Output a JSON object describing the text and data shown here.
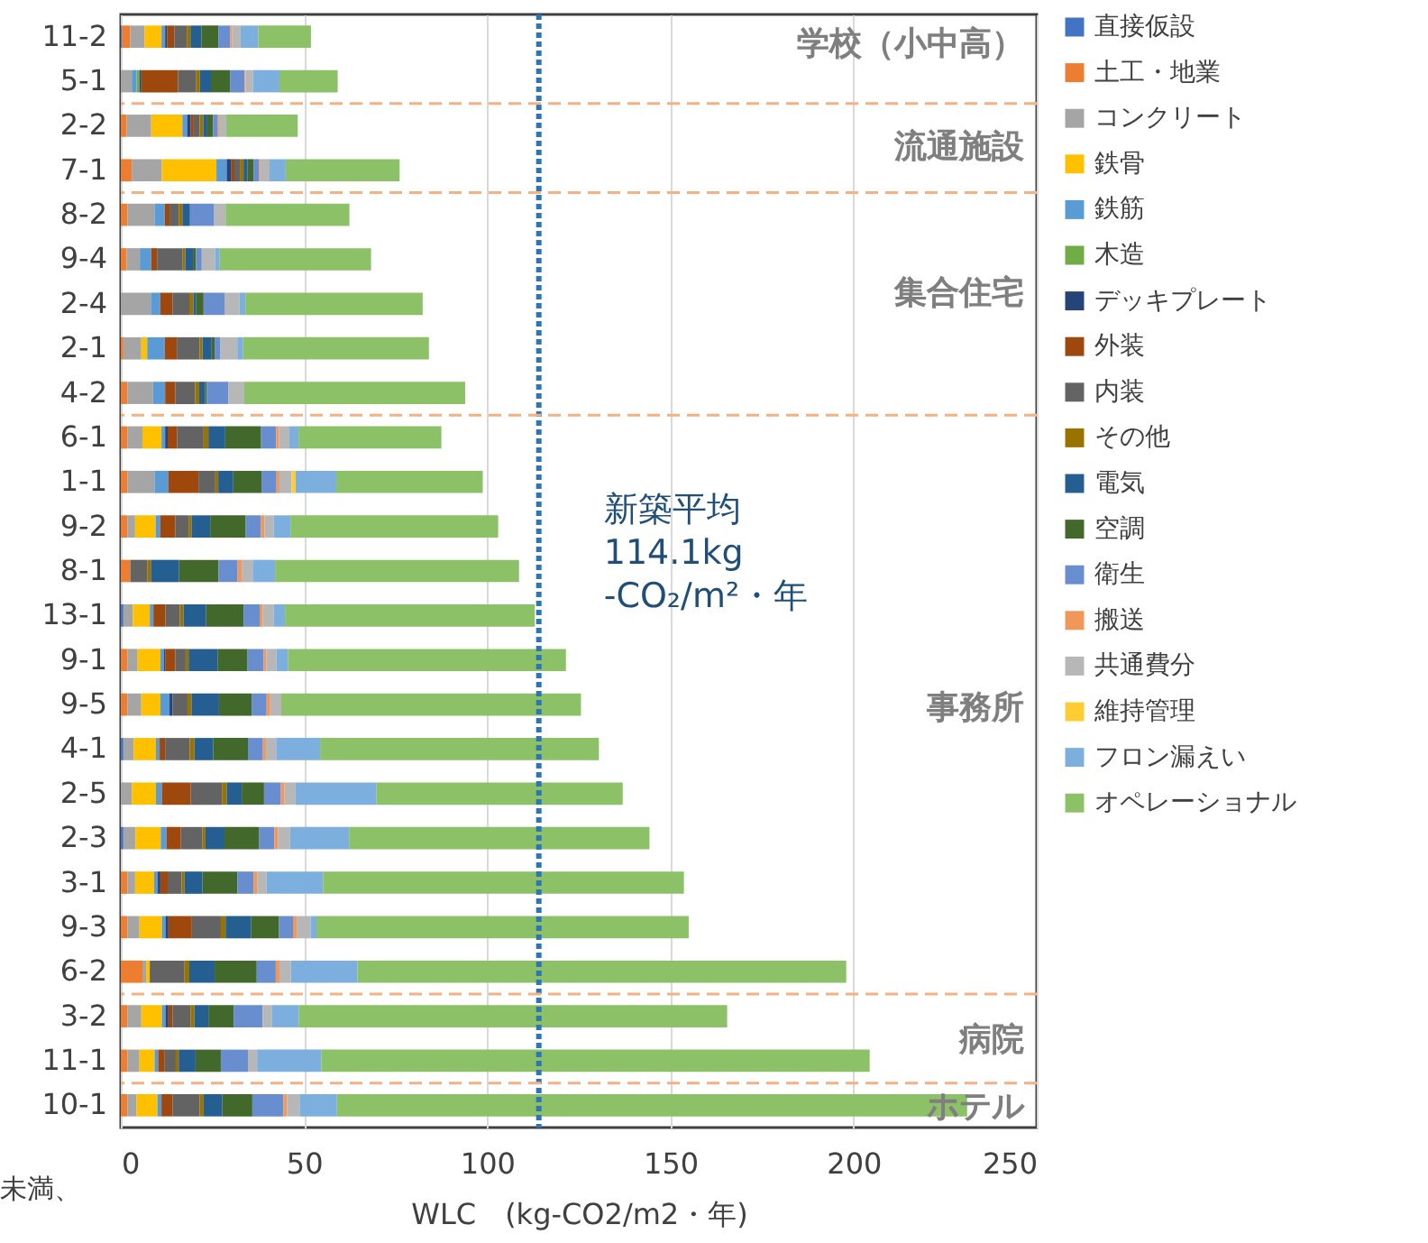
{
  "chart_data": {
    "type": "bar",
    "orientation": "horizontal",
    "stacked": true,
    "xlabel": "WLC　(kg-CO2/m2・年)",
    "categories": [
      "11-2",
      "5-1",
      "2-2",
      "7-1",
      "8-2",
      "9-4",
      "2-4",
      "2-1",
      "4-2",
      "6-1",
      "1-1",
      "9-2",
      "8-1",
      "13-1",
      "9-1",
      "9-5",
      "4-1",
      "2-5",
      "2-3",
      "3-1",
      "9-3",
      "6-2",
      "3-2",
      "11-1",
      "10-1"
    ],
    "xlim": [
      0,
      250
    ],
    "xticks": [
      0,
      50,
      100,
      150,
      200,
      250
    ],
    "grid": "x",
    "legend": "right",
    "series": [
      {
        "name": "直接仮設",
        "color": "#4472c4",
        "values": [
          0.3,
          0,
          0,
          0,
          0,
          0,
          0,
          0,
          0,
          0,
          0,
          0,
          0,
          0.7,
          0,
          0,
          0.7,
          0,
          0.7,
          0,
          0,
          0,
          0,
          0,
          0
        ]
      },
      {
        "name": "土工・地業",
        "color": "#ed7d31",
        "values": [
          2.3,
          0,
          1.6,
          3,
          1.8,
          1.6,
          0,
          0.7,
          1.8,
          1.8,
          1.8,
          1.8,
          2.6,
          0,
          1.8,
          1.8,
          0,
          0,
          0,
          1.8,
          1.8,
          5.9,
          1.8,
          1.8,
          1.8
        ]
      },
      {
        "name": "コンクリート",
        "color": "#a5a5a5",
        "values": [
          3.9,
          3,
          6.7,
          8.2,
          7.4,
          3.6,
          8.2,
          4.9,
          7,
          4.1,
          7.4,
          2.1,
          0,
          2.6,
          2.8,
          3.8,
          2.8,
          3,
          3.3,
          2.1,
          3.3,
          1,
          3.8,
          3.3,
          2.5
        ]
      },
      {
        "name": "鉄骨",
        "color": "#ffc000",
        "values": [
          4.6,
          0,
          8.5,
          14.9,
          0,
          0,
          0,
          1.6,
          0,
          5.2,
          0,
          5.6,
          0,
          4.6,
          6.2,
          5.2,
          6.1,
          6.6,
          6.9,
          5.2,
          6.1,
          1,
          5.6,
          4.1,
          5.7
        ]
      },
      {
        "name": "鉄筋",
        "color": "#5b9bd5",
        "values": [
          1,
          1.3,
          1.3,
          2.8,
          2.8,
          3.1,
          2.6,
          4.8,
          3.3,
          1,
          3.8,
          1.3,
          0,
          1,
          1,
          2.5,
          1,
          1.6,
          1.6,
          1,
          1,
          0,
          1,
          1,
          1.1
        ]
      },
      {
        "name": "木造",
        "color": "#70ad47",
        "values": [
          0,
          0.8,
          0,
          0,
          0,
          0,
          0,
          0,
          0,
          0,
          0,
          0,
          0,
          0,
          0,
          0,
          0,
          0,
          0,
          0,
          0,
          0,
          0,
          0,
          0
        ]
      },
      {
        "name": "デッキプレート",
        "color": "#264478",
        "values": [
          0.5,
          0.5,
          1,
          1.3,
          0,
          0,
          0,
          0,
          0,
          0.7,
          0,
          0,
          0,
          0,
          0.3,
          0.8,
          0,
          0,
          0,
          0.7,
          0.8,
          0,
          0.8,
          0,
          0
        ]
      },
      {
        "name": "外装",
        "color": "#9e480e",
        "values": [
          2,
          10,
          0.8,
          0.8,
          1.3,
          1.6,
          3.3,
          3.3,
          2.8,
          2.6,
          8.2,
          4.1,
          0,
          3.3,
          2.8,
          0,
          1.5,
          7.9,
          3.9,
          2,
          6.4,
          0,
          1.1,
          1.8,
          3
        ]
      },
      {
        "name": "内装",
        "color": "#636363",
        "values": [
          3.4,
          5,
          1.6,
          1.5,
          2.5,
          7,
          4.6,
          6.2,
          5.4,
          7.2,
          4.6,
          3.6,
          4.6,
          3.9,
          2.8,
          4.1,
          6.7,
          8.5,
          5.9,
          3.8,
          7.9,
          9.5,
          4.9,
          3,
          7.4
        ]
      },
      {
        "name": "その他",
        "color": "#997300",
        "values": [
          1,
          1,
          1,
          1,
          1,
          0.7,
          1.1,
          0.8,
          1.1,
          1.3,
          0.8,
          0.8,
          1,
          1,
          0.8,
          1.1,
          1.3,
          1.3,
          0.8,
          0.8,
          1.3,
          1.3,
          1.1,
          0.8,
          1.1
        ]
      },
      {
        "name": "電気",
        "color": "#255e91",
        "values": [
          3,
          3,
          1.1,
          1.1,
          2.1,
          2.1,
          0.8,
          2.5,
          1.6,
          4.6,
          4.1,
          5.1,
          7.7,
          6.2,
          7.9,
          7.5,
          5.1,
          4.1,
          5.2,
          4.9,
          6.9,
          6.9,
          3.8,
          4.6,
          5.1
        ]
      },
      {
        "name": "空調",
        "color": "#43682b",
        "values": [
          4.6,
          5.2,
          1.6,
          1.6,
          0,
          0.8,
          2,
          0.8,
          0.5,
          9.8,
          7.7,
          9.7,
          10.8,
          10.2,
          8.2,
          8.9,
          9.5,
          6.1,
          9.5,
          9.5,
          7.7,
          11.5,
          6.9,
          6.9,
          8.2
        ]
      },
      {
        "name": "衛生",
        "color": "#698ed0",
        "values": [
          3.3,
          4,
          1.3,
          1.6,
          6.6,
          1.6,
          5.7,
          1.6,
          5.9,
          4.1,
          4.1,
          4.1,
          5.2,
          4.4,
          4.4,
          4.1,
          4.1,
          4.6,
          4.1,
          4.4,
          3.8,
          5.2,
          7.9,
          7.4,
          8.5
        ]
      },
      {
        "name": "搬送",
        "color": "#f1975a",
        "values": [
          0.5,
          0.3,
          0.3,
          0.3,
          0,
          0,
          0,
          0,
          0,
          0.8,
          0.8,
          1,
          1.1,
          0.8,
          0.7,
          1,
          0.8,
          1,
          1,
          1,
          1,
          1,
          0,
          0,
          1
        ]
      },
      {
        "name": "共通費分",
        "color": "#b7b7b7",
        "values": [
          2.3,
          2,
          2,
          2.5,
          3.1,
          3.6,
          4.1,
          4.6,
          4.3,
          2.8,
          3.3,
          2.5,
          3,
          3,
          2.8,
          3,
          2.8,
          3,
          3.3,
          2.6,
          3.8,
          3.1,
          2.5,
          2.5,
          3.4
        ]
      },
      {
        "name": "維持管理",
        "color": "#ffcd33",
        "values": [
          0,
          0,
          0,
          0,
          0,
          0,
          0,
          0,
          0,
          0,
          1.1,
          0,
          0,
          0,
          0,
          0,
          0,
          0,
          0,
          0,
          0,
          0,
          0,
          0,
          0
        ]
      },
      {
        "name": "フロン漏えい",
        "color": "#7cafdd",
        "values": [
          4.8,
          7.2,
          0,
          4.4,
          0,
          1.3,
          1.6,
          1.6,
          0,
          2.5,
          11.1,
          4.6,
          6.1,
          3.1,
          3.1,
          0,
          12,
          22.1,
          16.1,
          15.4,
          1.6,
          18.2,
          7.4,
          17.5,
          10.2
        ]
      },
      {
        "name": "オペレーショナル",
        "color": "#8cc168",
        "values": [
          14.4,
          15.9,
          19.5,
          31.1,
          33.8,
          41.3,
          48.4,
          50.7,
          60.3,
          39,
          40,
          56.7,
          66.6,
          68.2,
          75.9,
          81.8,
          76.1,
          67.2,
          82,
          98.5,
          101.6,
          133.4,
          116.9,
          149.7,
          172
        ]
      }
    ],
    "ref_lines": [
      {
        "axis": "x",
        "value": 114.1,
        "label": "新築平均\n114.1kg\n-CO₂/m²・年",
        "color": "#2e75b6",
        "line_style": "dotted"
      },
      {
        "axis": "y",
        "value": "5-1",
        "color": "#f4b183",
        "line_style": "dashed"
      },
      {
        "axis": "y",
        "value": "7-1",
        "color": "#f4b183",
        "line_style": "dashed"
      },
      {
        "axis": "y",
        "value": "4-2",
        "color": "#f4b183",
        "line_style": "dashed"
      },
      {
        "axis": "y",
        "value": "6-2",
        "color": "#f4b183",
        "line_style": "dashed"
      },
      {
        "axis": "y",
        "value": "11-1",
        "color": "#f4b183",
        "line_style": "dashed"
      }
    ],
    "annotations": [
      "学校（小中高）",
      "流通施設",
      "集合住宅",
      "事務所",
      "病院",
      "ホテル",
      "未満、"
    ]
  }
}
